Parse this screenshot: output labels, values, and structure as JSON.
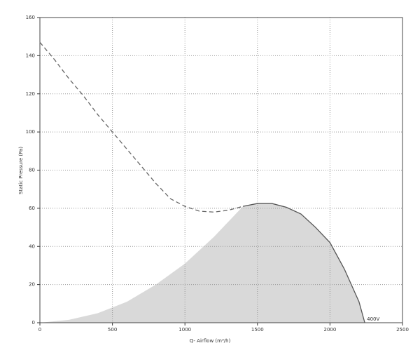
{
  "chart_data": {
    "type": "line",
    "xlabel": "Q- Airflow (m³/h)",
    "ylabel": "Static Pressure (Pa)",
    "xlim": [
      0,
      2500
    ],
    "xticks": [
      0,
      500,
      1000,
      1500,
      2000,
      2500
    ],
    "ylim": [
      0,
      160
    ],
    "yticks": [
      0,
      20,
      40,
      60,
      80,
      100,
      120,
      140,
      160
    ],
    "grid": true,
    "series": [
      {
        "style": "area",
        "color": "#d9d9d9",
        "x": [
          0,
          200,
          400,
          600,
          800,
          1000,
          1200,
          1400,
          1500,
          1600,
          1700,
          1800,
          1900,
          2000,
          2100,
          2200,
          2240
        ],
        "values": [
          0,
          1.5,
          5,
          11,
          20,
          31,
          45,
          61,
          62.5,
          62.5,
          60.5,
          57,
          50,
          42,
          28,
          11,
          0
        ]
      },
      {
        "style": "dashed",
        "color": "#666666",
        "x": [
          0,
          100,
          200,
          300,
          400,
          500,
          600,
          700,
          800,
          900,
          1000,
          1100,
          1200,
          1300,
          1400
        ],
        "values": [
          147,
          138,
          128,
          119,
          109,
          100,
          91,
          82,
          73,
          65,
          61,
          58.5,
          58,
          59,
          61
        ]
      },
      {
        "style": "solid",
        "color": "#555555",
        "x": [
          1400,
          1500,
          1600,
          1700,
          1800,
          1900,
          2000,
          2100,
          2200,
          2240
        ],
        "values": [
          61,
          62.5,
          62.5,
          60.5,
          57,
          50,
          42,
          28,
          11,
          0
        ]
      }
    ],
    "annotations": [
      {
        "text": "400V",
        "x": 2240,
        "y": 0
      }
    ]
  }
}
